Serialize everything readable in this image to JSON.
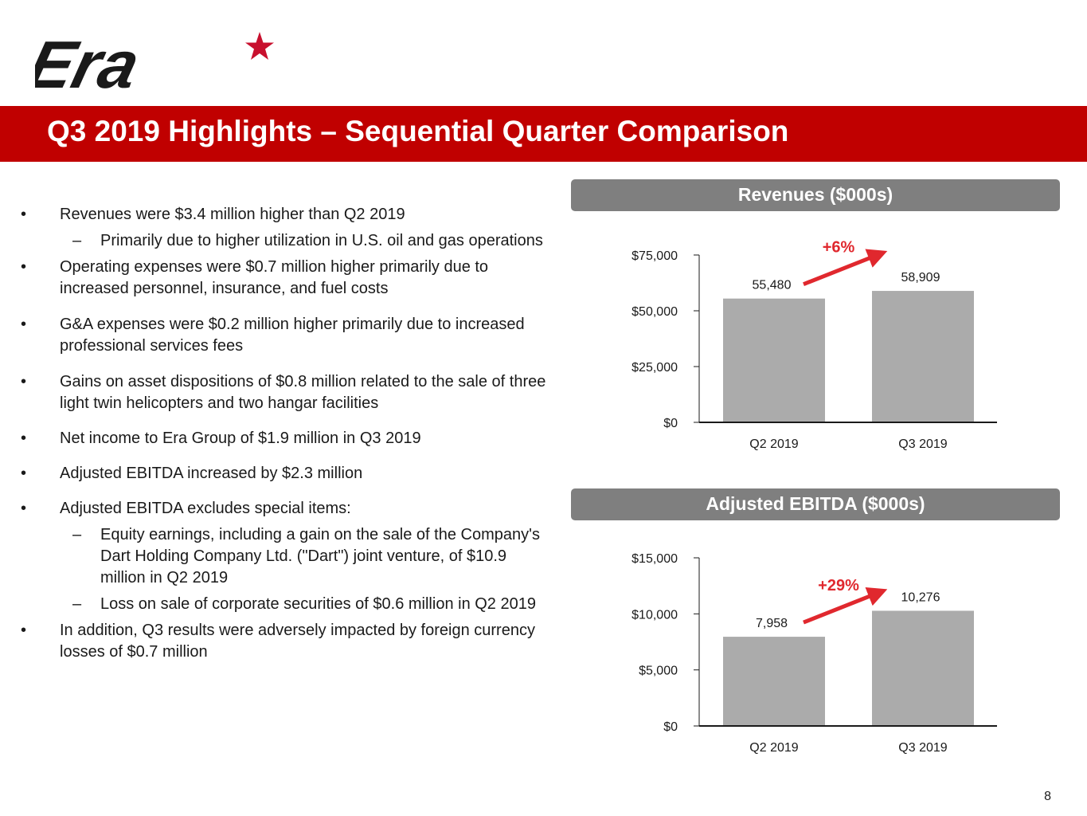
{
  "logo": {
    "text": "Era"
  },
  "header": {
    "title": "Q3 2019 Highlights – Sequential Quarter Comparison"
  },
  "bullet_marker": "•",
  "sub_marker": "–",
  "bullets": {
    "b1": "Revenues were $3.4 million higher than Q2 2019",
    "b1_s1": "Primarily due to higher utilization in U.S. oil and gas operations",
    "b2": "Operating expenses were $0.7 million higher primarily due to increased personnel, insurance, and fuel costs",
    "b3": "G&A expenses were $0.2 million higher primarily due to increased professional services fees",
    "b4": "Gains on asset dispositions of $0.8 million related to the sale of three light twin helicopters and two hangar facilities",
    "b5": "Net income to Era Group of $1.9 million in Q3 2019",
    "b6": "Adjusted EBITDA increased by $2.3 million",
    "b7": "Adjusted EBITDA excludes special items:",
    "b7_s1": "Equity earnings, including a gain on the sale of the Company's Dart Holding Company Ltd. (\"Dart\") joint venture, of $10.9 million in Q2 2019",
    "b7_s2": "Loss on sale of corporate securities of $0.6 million in Q2 2019",
    "b8": "In addition, Q3 results were adversely impacted by foreign currency losses of $0.7 million"
  },
  "colors": {
    "brand_red": "#c00000",
    "bar_gray": "#ababab",
    "header_gray": "#7f7f7f",
    "arrow_red": "#e0282e"
  },
  "chart_data": [
    {
      "type": "bar",
      "title": "Revenues ($000s)",
      "categories": [
        "Q2 2019",
        "Q3 2019"
      ],
      "values": [
        55480,
        58909
      ],
      "value_labels": [
        "55,480",
        "58,909"
      ],
      "yticks": [
        0,
        25000,
        50000,
        75000
      ],
      "ytick_labels": [
        "$0",
        "$25,000",
        "$50,000",
        "$75,000"
      ],
      "ylim": [
        0,
        75000
      ],
      "change_label": "+6%"
    },
    {
      "type": "bar",
      "title": "Adjusted EBITDA ($000s)",
      "categories": [
        "Q2 2019",
        "Q3 2019"
      ],
      "values": [
        7958,
        10276
      ],
      "value_labels": [
        "7,958",
        "10,276"
      ],
      "yticks": [
        0,
        5000,
        10000,
        15000
      ],
      "ytick_labels": [
        "$0",
        "$5,000",
        "$10,000",
        "$15,000"
      ],
      "ylim": [
        0,
        15000
      ],
      "change_label": "+29%"
    }
  ],
  "page": {
    "number": "8"
  }
}
